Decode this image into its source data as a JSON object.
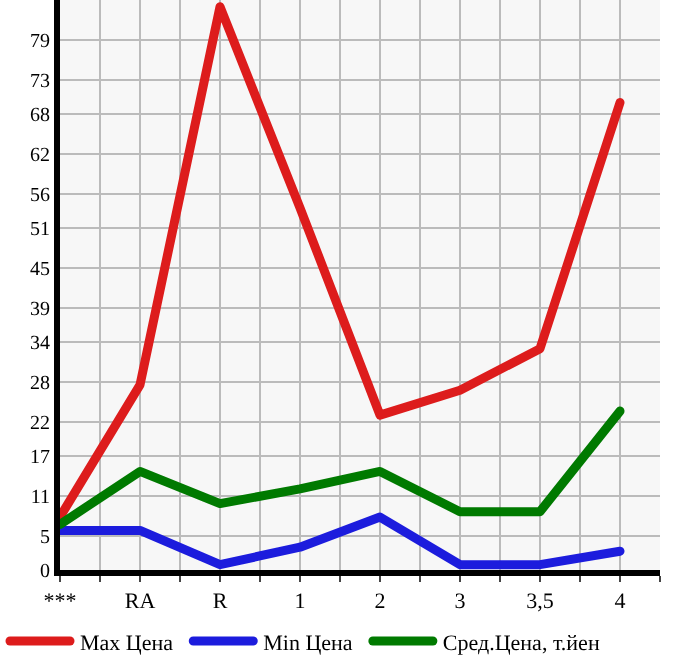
{
  "chart_data": {
    "type": "line",
    "categories": [
      "***",
      "RA",
      "R",
      "1",
      "2",
      "3",
      "3,5",
      "4"
    ],
    "series": [
      {
        "name": "Max Цена",
        "color": "#dd1c1c",
        "values": [
          7.9,
          27.6,
          84,
          54,
          23.1,
          26.8,
          33,
          69.7
        ]
      },
      {
        "name": "Min Цена",
        "color": "#1c1cdd",
        "values": [
          5.9,
          5.9,
          0.8,
          3.4,
          7.9,
          0.8,
          0.8,
          2.8
        ]
      },
      {
        "name": "Сред.Цена, т.йен",
        "color": "#007a00",
        "values": [
          6.8,
          14.7,
          9.9,
          12.1,
          14.7,
          8.7,
          8.7,
          23.7
        ]
      }
    ],
    "ylim": [
      0,
      85
    ],
    "yticks": [
      0,
      5,
      11,
      17,
      22,
      28,
      34,
      39,
      45,
      51,
      56,
      62,
      68,
      73,
      79
    ],
    "grid": true,
    "legend": "bottom",
    "marker": "none",
    "line_style": "solid"
  }
}
